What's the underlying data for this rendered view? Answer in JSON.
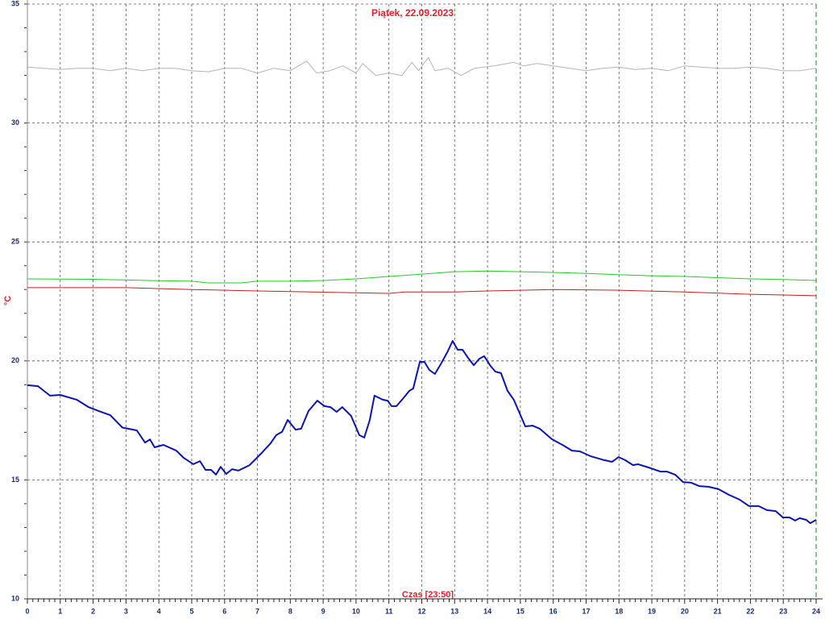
{
  "chart_data": {
    "type": "line",
    "title": "Piątek, 22.09.2023",
    "x_label": "Czas [23:50]",
    "y_label": "°C",
    "xlim": [
      0,
      24
    ],
    "xticks": [
      0,
      1,
      2,
      3,
      4,
      5,
      6,
      7,
      8,
      9,
      10,
      11,
      12,
      13,
      14,
      15,
      16,
      17,
      18,
      19,
      20,
      21,
      22,
      23,
      24
    ],
    "ylim": [
      10,
      35
    ],
    "yticks": [
      10,
      15,
      20,
      25,
      30,
      35
    ],
    "minor_yticks": [
      11,
      12,
      13,
      14,
      16,
      17,
      18,
      19,
      21,
      22,
      23,
      24,
      26,
      27,
      28,
      29,
      31,
      32,
      33,
      34
    ],
    "grid": true,
    "series": [
      {
        "color": "#b4b4b4",
        "width": 1,
        "x": [
          0,
          0.5,
          1,
          1.5,
          2,
          2.5,
          3,
          3.5,
          4,
          4.5,
          5,
          5.5,
          6,
          6.5,
          7,
          7.5,
          8,
          8.5,
          8.8,
          9.2,
          9.6,
          10,
          10.2,
          10.6,
          11,
          11.4,
          11.7,
          11.9,
          12.2,
          12.4,
          12.8,
          13.2,
          13.6,
          14.2,
          14.8,
          15.1,
          15.5,
          16,
          16.5,
          17,
          17.5,
          18,
          18.5,
          19,
          19.5,
          20,
          20.5,
          21,
          21.5,
          22,
          22.5,
          23,
          23.5,
          24
        ],
        "values": [
          32.35,
          32.3,
          32.25,
          32.3,
          32.3,
          32.2,
          32.3,
          32.2,
          32.3,
          32.3,
          32.2,
          32.15,
          32.3,
          32.3,
          32.1,
          32.3,
          32.2,
          32.6,
          32.1,
          32.2,
          32.4,
          32.1,
          32.5,
          32.0,
          32.1,
          32.0,
          32.55,
          32.2,
          32.75,
          32.2,
          32.3,
          32.0,
          32.3,
          32.4,
          32.55,
          32.4,
          32.5,
          32.4,
          32.3,
          32.2,
          32.3,
          32.35,
          32.25,
          32.3,
          32.2,
          32.4,
          32.35,
          32.3,
          32.3,
          32.35,
          32.3,
          32.2,
          32.2,
          32.3
        ]
      },
      {
        "color": "#22cc22",
        "width": 1,
        "x": [
          0,
          2,
          3,
          4,
          5,
          5.5,
          6.5,
          7,
          8,
          9,
          10,
          11,
          12,
          13,
          14,
          15,
          16,
          17,
          18,
          19,
          20,
          21,
          22,
          23,
          24
        ],
        "values": [
          23.45,
          23.43,
          23.4,
          23.37,
          23.35,
          23.28,
          23.28,
          23.35,
          23.35,
          23.38,
          23.45,
          23.55,
          23.65,
          23.75,
          23.78,
          23.75,
          23.72,
          23.68,
          23.62,
          23.58,
          23.55,
          23.5,
          23.45,
          23.42,
          23.38
        ]
      },
      {
        "color": "#c81e1e",
        "width": 1,
        "x": [
          0,
          3,
          5,
          7,
          11,
          11.5,
          13,
          14,
          16,
          18,
          20,
          22,
          24
        ],
        "values": [
          23.08,
          23.08,
          23.0,
          22.94,
          22.84,
          22.9,
          22.9,
          22.94,
          23.0,
          22.97,
          22.9,
          22.8,
          22.74
        ]
      },
      {
        "color": "#0a14b4",
        "width": 2,
        "x": [
          0,
          0.32,
          0.69,
          1.0,
          1.5,
          1.86,
          2.16,
          2.52,
          2.89,
          3.33,
          3.58,
          3.73,
          3.87,
          4.14,
          4.53,
          4.75,
          5.05,
          5.25,
          5.42,
          5.59,
          5.74,
          5.88,
          6.05,
          6.23,
          6.42,
          6.76,
          7.13,
          7.4,
          7.57,
          7.75,
          7.92,
          8.16,
          8.33,
          8.55,
          8.82,
          9.04,
          9.22,
          9.41,
          9.58,
          9.85,
          10.1,
          10.25,
          10.42,
          10.56,
          10.81,
          10.96,
          11.08,
          11.23,
          11.42,
          11.62,
          11.74,
          11.94,
          12.08,
          12.23,
          12.4,
          12.6,
          12.79,
          12.94,
          13.09,
          13.24,
          13.41,
          13.58,
          13.75,
          13.9,
          14.09,
          14.24,
          14.41,
          14.61,
          14.8,
          14.98,
          15.15,
          15.37,
          15.59,
          15.96,
          16.32,
          16.57,
          16.81,
          17.13,
          17.55,
          17.79,
          17.99,
          18.19,
          18.43,
          18.58,
          18.9,
          19.26,
          19.46,
          19.71,
          19.95,
          20.2,
          20.44,
          20.74,
          21.03,
          21.35,
          21.67,
          21.96,
          22.25,
          22.5,
          22.77,
          22.99,
          23.19,
          23.36,
          23.5,
          23.7,
          23.82,
          24
        ],
        "values": [
          18.98,
          18.94,
          18.54,
          18.57,
          18.37,
          18.06,
          17.9,
          17.72,
          17.2,
          17.08,
          16.57,
          16.7,
          16.37,
          16.47,
          16.23,
          15.93,
          15.66,
          15.79,
          15.42,
          15.42,
          15.22,
          15.55,
          15.25,
          15.45,
          15.39,
          15.62,
          16.13,
          16.54,
          16.88,
          17.02,
          17.52,
          17.11,
          17.15,
          17.89,
          18.33,
          18.1,
          18.06,
          17.86,
          18.06,
          17.69,
          16.88,
          16.78,
          17.52,
          18.54,
          18.37,
          18.33,
          18.1,
          18.1,
          18.4,
          18.74,
          18.84,
          19.96,
          19.96,
          19.62,
          19.45,
          19.92,
          20.4,
          20.84,
          20.47,
          20.47,
          20.13,
          19.82,
          20.09,
          20.2,
          19.79,
          19.55,
          19.49,
          18.74,
          18.37,
          17.79,
          17.25,
          17.28,
          17.15,
          16.71,
          16.44,
          16.23,
          16.2,
          16.0,
          15.83,
          15.76,
          15.96,
          15.83,
          15.62,
          15.66,
          15.52,
          15.35,
          15.35,
          15.22,
          14.91,
          14.88,
          14.74,
          14.71,
          14.61,
          14.37,
          14.17,
          13.9,
          13.9,
          13.73,
          13.69,
          13.42,
          13.42,
          13.29,
          13.39,
          13.32,
          13.18,
          13.32
        ]
      }
    ]
  }
}
